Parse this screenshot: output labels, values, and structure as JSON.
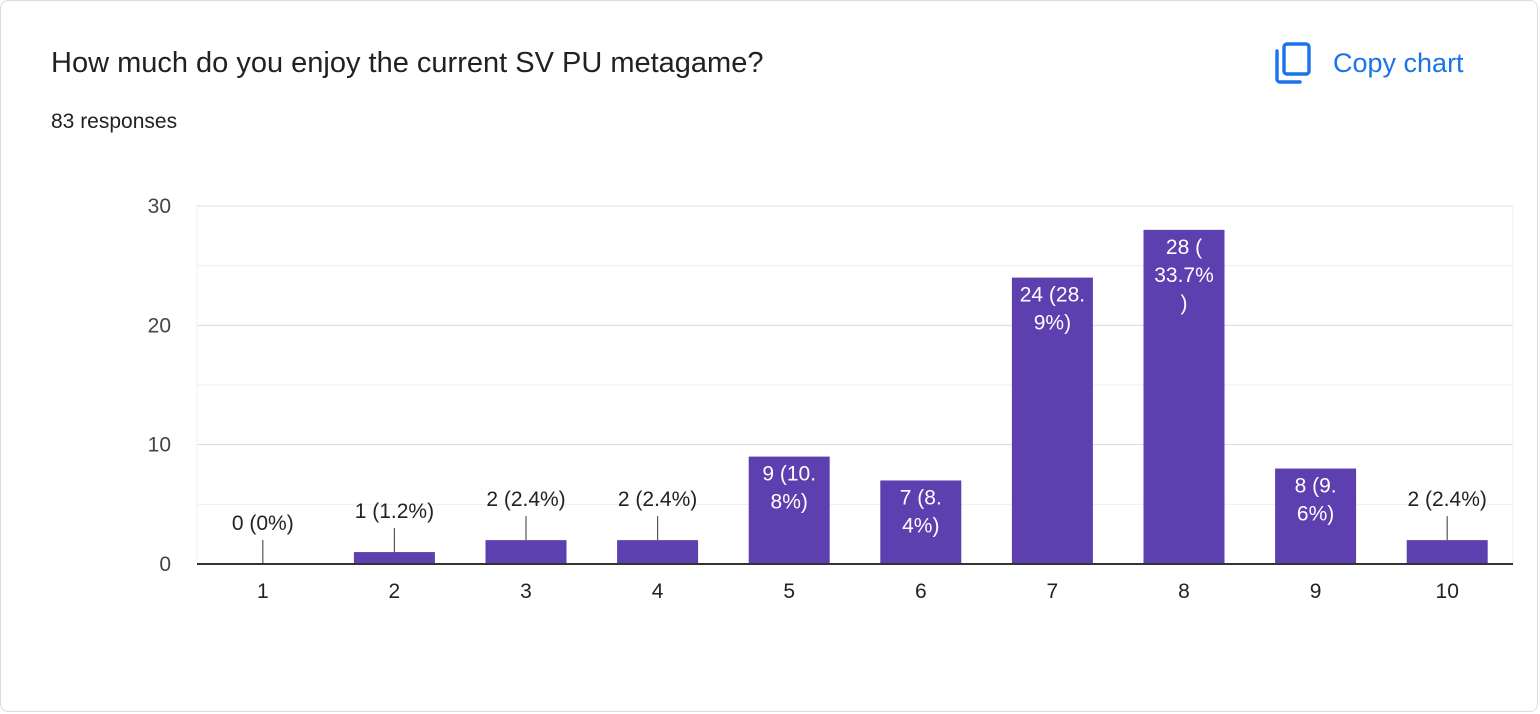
{
  "header": {
    "title": "How much do you enjoy the current SV PU metagame?",
    "responses": "83 responses",
    "copy_label": "Copy chart"
  },
  "icons": {
    "copy": "copy-icon"
  },
  "colors": {
    "bar": "#5e3fb0",
    "accent": "#1a73e8",
    "grid": "#e6e6e6",
    "axis": "#333333"
  },
  "chart_data": {
    "type": "bar",
    "categories": [
      "1",
      "2",
      "3",
      "4",
      "5",
      "6",
      "7",
      "8",
      "9",
      "10"
    ],
    "values": [
      0,
      1,
      2,
      2,
      9,
      7,
      24,
      28,
      8,
      2
    ],
    "data_labels": [
      [
        "0 (0%)"
      ],
      [
        "1 (1.2%)"
      ],
      [
        "2 (2.4%)"
      ],
      [
        "2 (2.4%)"
      ],
      [
        "9 (10.",
        "8%)"
      ],
      [
        "7 (8.",
        "4%)"
      ],
      [
        "24 (28.",
        "9%)"
      ],
      [
        "28 (",
        "33.7%",
        ")"
      ],
      [
        "8 (9.",
        "6%)"
      ],
      [
        "2 (2.4%)"
      ]
    ],
    "y_ticks": [
      0,
      10,
      20,
      30
    ],
    "ylim": [
      0,
      30
    ],
    "grid": true,
    "legend": "none"
  }
}
